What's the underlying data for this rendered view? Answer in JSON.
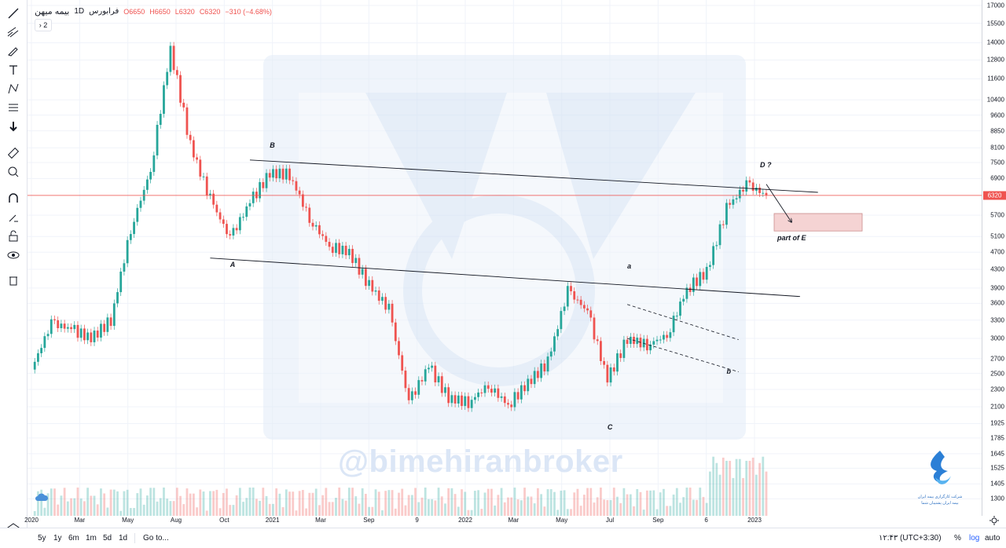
{
  "legend": {
    "symbol": "بیمه میهن",
    "interval": "1D",
    "exchange": "فرابورس",
    "open": "O6650",
    "high": "H6650",
    "low": "L6320",
    "close": "C6320",
    "change": "−310 (−4.68%)",
    "indicators_count": "2"
  },
  "colors": {
    "up": "#26a69a",
    "down": "#ef5350",
    "price_line": "#ef5350",
    "watermark": "#dbe6f6"
  },
  "watermark": "@bimehiranbroker",
  "logo_lines": [
    "شرکت کارگزاری بیمه ایران",
    "بیمه ایران پشتیبان شما"
  ],
  "price_axis": {
    "ticks": [
      "17000",
      "15500",
      "14000",
      "12800",
      "11600",
      "10400",
      "9600",
      "8850",
      "8100",
      "7500",
      "6900",
      "5700",
      "5100",
      "4700",
      "4300",
      "3900",
      "3600",
      "3300",
      "3000",
      "2700",
      "2500",
      "2300",
      "2100",
      "1925",
      "1785",
      "1645",
      "1525",
      "1405",
      "1300"
    ],
    "last_price": "6320"
  },
  "time_axis": {
    "ticks": [
      "2020",
      "Mar",
      "May",
      "Aug",
      "Oct",
      "2021",
      "Mar",
      "Sep",
      "9",
      "2022",
      "Mar",
      "May",
      "Jul",
      "Sep",
      "6",
      "2023"
    ]
  },
  "annotations": {
    "A": "A",
    "B": "B",
    "C": "C",
    "a": "a",
    "b": "b",
    "D": "D ?",
    "E": "part of E"
  },
  "bottom_bar": {
    "ranges": [
      "5y",
      "1y",
      "6m",
      "1m",
      "5d",
      "1d"
    ],
    "goto": "Go to...",
    "clock": "۱۲:۴۳ (UTC+3:30)",
    "percent": "%",
    "log": "log",
    "auto": "auto"
  },
  "chart_data": {
    "type": "candlestick",
    "title": "",
    "ylabel": "",
    "scale": "log",
    "ylim": [
      1250,
      17000
    ],
    "x": [
      "2019-12",
      "2020-01",
      "2020-02",
      "2020-03",
      "2020-04",
      "2020-05",
      "2020-06",
      "2020-07",
      "2020-08",
      "2020-09",
      "2020-10",
      "2020-11",
      "2020-12",
      "2021-01",
      "2021-02",
      "2021-03",
      "2021-04",
      "2021-05",
      "2021-06",
      "2021-07",
      "2021-08",
      "2021-09",
      "2021-10",
      "2021-11",
      "2021-12",
      "2022-01",
      "2022-02",
      "2022-03",
      "2022-04",
      "2022-05",
      "2022-06",
      "2022-07",
      "2022-08",
      "2022-09",
      "2022-10",
      "2022-11",
      "2022-12",
      "2023-01"
    ],
    "close": [
      2550,
      3250,
      3150,
      3000,
      3300,
      5300,
      7200,
      13600,
      8200,
      6200,
      5050,
      6100,
      7100,
      7050,
      5600,
      4850,
      4700,
      3950,
      3500,
      2150,
      2600,
      2200,
      2150,
      2350,
      2120,
      2380,
      2650,
      3850,
      3450,
      2420,
      3000,
      2900,
      3050,
      3880,
      4250,
      5900,
      6700,
      6320
    ],
    "lines": [
      {
        "name": "",
        "from": [
          "2020-11",
          7600
        ],
        "to": [
          "2023-01",
          6520
        ]
      },
      {
        "name": "",
        "from": [
          "2020-09",
          4560
        ],
        "to": [
          "2022-12",
          3800
        ]
      }
    ],
    "points": {
      "A": [
        "2020-10",
        4500
      ],
      "B": [
        "2020-12",
        7900
      ],
      "C": [
        "2022-05",
        1925
      ],
      "a": [
        "2022-06",
        4250
      ],
      "b": [
        "2022-11",
        2580
      ],
      "D ?": [
        "2023-01",
        7150
      ]
    },
    "target_zone": {
      "label": "part of E",
      "from": 5250,
      "to": 5750
    }
  }
}
